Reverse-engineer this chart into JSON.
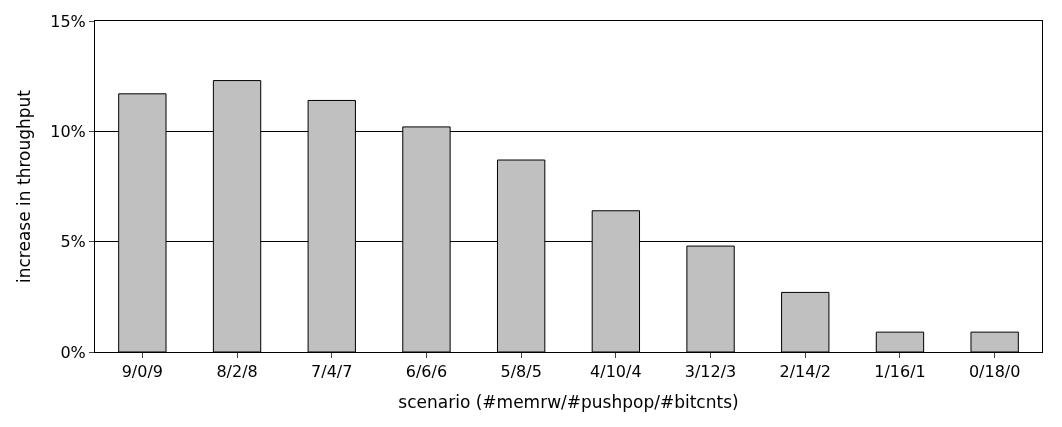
{
  "chart_data": {
    "type": "bar",
    "xlabel": "scenario (#memrw/#pushpop/#bitcnts)",
    "ylabel": "increase in throughput",
    "categories": [
      "9/0/9",
      "8/2/8",
      "7/4/7",
      "6/6/6",
      "5/8/5",
      "4/10/4",
      "3/12/3",
      "2/14/2",
      "1/16/1",
      "0/18/0"
    ],
    "values": [
      11.7,
      12.3,
      11.4,
      10.2,
      8.7,
      6.4,
      4.8,
      2.7,
      0.9,
      0.9
    ],
    "color": "#c0c0c0",
    "ylim": [
      0,
      15
    ],
    "yticks": [
      {
        "value": 0,
        "label": "0%"
      },
      {
        "value": 5,
        "label": "5%"
      },
      {
        "value": 10,
        "label": "10%"
      },
      {
        "value": 15,
        "label": "15%"
      }
    ],
    "grid": "y"
  }
}
